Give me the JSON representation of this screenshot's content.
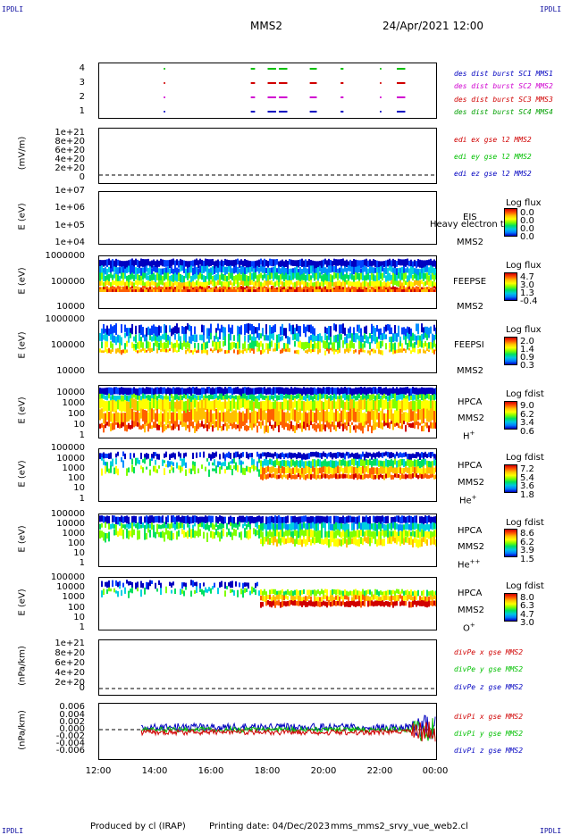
{
  "header": {
    "corner_label": "IPDLI",
    "spacecraft": "MMS2",
    "datetime": "24/Apr/2021 12:00"
  },
  "footer": {
    "produced_by": "Produced by cl (IRAP)",
    "printing_date": "Printing date: 04/Dec/2023",
    "script_name": "mms_mms2_srvy_vue_web2.cl"
  },
  "colors": {
    "red": "#d00000",
    "green": "#00c000",
    "blue": "#0000c0",
    "magenta": "#d000d0"
  },
  "chart_data": [
    {
      "type": "scatter",
      "panel": "burst-flags",
      "yticks": [
        "4",
        "3",
        "2",
        "1"
      ],
      "series": [
        {
          "name": "des dist burst SC1 MMS1",
          "color": "#0000c0",
          "y": 1
        },
        {
          "name": "des dist burst SC2 MMS2",
          "color": "#d000d0",
          "y": 2
        },
        {
          "name": "des dist burst SC3 MMS3",
          "color": "#d00000",
          "y": 3
        },
        {
          "name": "des dist burst SC4 MMS4",
          "color": "#00c000",
          "y": 4
        }
      ],
      "burst_intervals_hours": [
        [
          14.3,
          14.35
        ],
        [
          17.4,
          17.55
        ],
        [
          18.0,
          18.3
        ],
        [
          18.4,
          18.7
        ],
        [
          19.5,
          19.75
        ],
        [
          20.6,
          20.7
        ],
        [
          22.0,
          22.05
        ],
        [
          22.6,
          22.9
        ]
      ]
    },
    {
      "type": "line",
      "panel": "edi-e",
      "ylabel": "(mV/m)",
      "yticks": [
        "1e+21",
        "8e+20",
        "6e+20",
        "4e+20",
        "2e+20",
        "0"
      ],
      "series": [
        {
          "name": "edi ex gse l2 MMS2",
          "color": "#d00000"
        },
        {
          "name": "edi ey gse l2 MMS2",
          "color": "#00c000"
        },
        {
          "name": "edi ez gse l2 MMS2",
          "color": "#0000c0"
        }
      ]
    },
    {
      "type": "heatmap",
      "panel": "eis",
      "ylabel": "E (eV)",
      "yticks": [
        "1e+07",
        "1e+06",
        "1e+05",
        "1e+04"
      ],
      "instrument": "EIS",
      "overlay_text": "Heavy electron to",
      "spacecraft_label": "MMS2",
      "colorbar_title": "Log flux",
      "colorbar_values": [
        "0.0",
        "0.0",
        "0.0",
        "0.0"
      ]
    },
    {
      "type": "heatmap",
      "panel": "feepse",
      "ylabel": "E (eV)",
      "yticks": [
        "1000000",
        "100000",
        "10000"
      ],
      "instrument": "FEEPSE",
      "spacecraft_label": "MMS2",
      "colorbar_title": "Log flux",
      "colorbar_values": [
        "4.7",
        "3.0",
        "1.3",
        "-0.4"
      ]
    },
    {
      "type": "heatmap",
      "panel": "feepsi",
      "ylabel": "E (eV)",
      "yticks": [
        "1000000",
        "100000",
        "10000"
      ],
      "instrument": "FEEPSI",
      "spacecraft_label": "MMS2",
      "colorbar_title": "Log flux",
      "colorbar_values": [
        "2.0",
        "1.4",
        "0.9",
        "0.3"
      ]
    },
    {
      "type": "heatmap",
      "panel": "hpca-h",
      "ylabel": "E (eV)",
      "yticks": [
        "10000",
        "1000",
        "100",
        "10",
        "1"
      ],
      "instrument": "HPCA",
      "spacecraft_label": "MMS2",
      "species_base": "H",
      "species_sup": "+",
      "colorbar_title": "Log fdist",
      "colorbar_values": [
        "9.0",
        "6.2",
        "3.4",
        "0.6"
      ]
    },
    {
      "type": "heatmap",
      "panel": "hpca-he1",
      "ylabel": "E (eV)",
      "yticks": [
        "100000",
        "10000",
        "1000",
        "100",
        "10",
        "1"
      ],
      "instrument": "HPCA",
      "spacecraft_label": "MMS2",
      "species_base": "He",
      "species_sup": "+",
      "colorbar_title": "Log fdist",
      "colorbar_values": [
        "7.2",
        "5.4",
        "3.6",
        "1.8"
      ]
    },
    {
      "type": "heatmap",
      "panel": "hpca-he2",
      "ylabel": "E (eV)",
      "yticks": [
        "100000",
        "10000",
        "1000",
        "100",
        "10",
        "1"
      ],
      "instrument": "HPCA",
      "spacecraft_label": "MMS2",
      "species_base": "He",
      "species_sup": "++",
      "colorbar_title": "Log fdist",
      "colorbar_values": [
        "8.6",
        "6.2",
        "3.9",
        "1.5"
      ]
    },
    {
      "type": "heatmap",
      "panel": "hpca-o",
      "ylabel": "E (eV)",
      "yticks": [
        "100000",
        "10000",
        "1000",
        "100",
        "10",
        "1"
      ],
      "instrument": "HPCA",
      "spacecraft_label": "MMS2",
      "species_base": "O",
      "species_sup": "+",
      "colorbar_title": "Log fdist",
      "colorbar_values": [
        "8.0",
        "6.3",
        "4.7",
        "3.0"
      ]
    },
    {
      "type": "line",
      "panel": "divpe",
      "ylabel": "(nPa/km)",
      "yticks": [
        "1e+21",
        "8e+20",
        "6e+20",
        "4e+20",
        "2e+20",
        "0"
      ],
      "series": [
        {
          "name": "divPe x gse MMS2",
          "color": "#d00000"
        },
        {
          "name": "divPe y gse MMS2",
          "color": "#00c000"
        },
        {
          "name": "divPe z gse MMS2",
          "color": "#0000c0"
        }
      ]
    },
    {
      "type": "line",
      "panel": "divpi",
      "ylabel": "(nPa/km)",
      "yticks": [
        "0.006",
        "0.004",
        "0.002",
        "0.000",
        "-0.002",
        "-0.004",
        "-0.006"
      ],
      "ylim": [
        -0.007,
        0.007
      ],
      "series": [
        {
          "name": "divPi x gse MMS2",
          "color": "#d00000"
        },
        {
          "name": "divPi y gse MMS2",
          "color": "#00c000"
        },
        {
          "name": "divPi z gse MMS2",
          "color": "#0000c0"
        }
      ]
    }
  ],
  "xaxis": {
    "ticks": [
      "12:00",
      "14:00",
      "16:00",
      "18:00",
      "20:00",
      "22:00",
      "00:00"
    ]
  }
}
